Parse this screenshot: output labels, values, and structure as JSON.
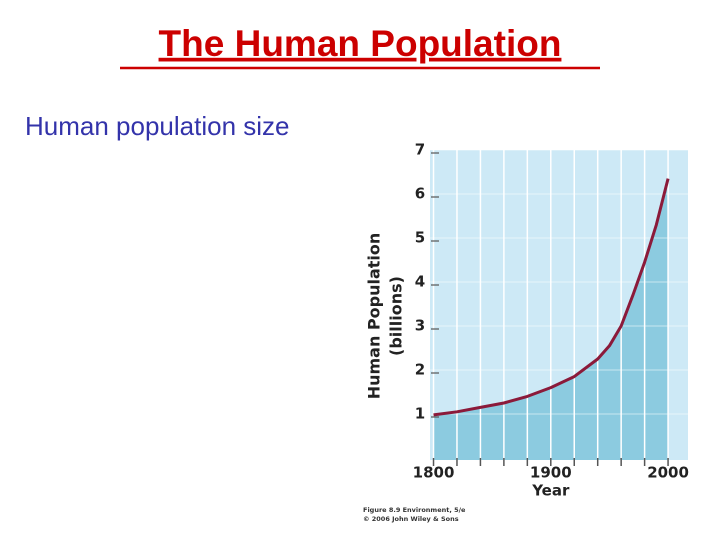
{
  "slide": {
    "title": "The Human Population",
    "subtitle": "Human population size"
  },
  "chart_data": {
    "type": "area",
    "ylabel": [
      "Human Population",
      "(billions)"
    ],
    "xlabel": "Year",
    "x": [
      1800,
      1820,
      1840,
      1860,
      1880,
      1900,
      1920,
      1940,
      1950,
      1960,
      1970,
      1980,
      1990,
      2000
    ],
    "values": [
      0.98,
      1.05,
      1.15,
      1.25,
      1.4,
      1.6,
      1.85,
      2.25,
      2.55,
      3.0,
      3.7,
      4.45,
      5.3,
      6.35
    ],
    "color": "#8b1a3a",
    "area_color": "#8ccbe0",
    "plot_background": "#cde9f6",
    "xlim": [
      1797,
      2017
    ],
    "ylim": [
      0,
      7
    ],
    "xticks": [
      1800,
      1900,
      2000
    ],
    "xminorticks": [
      1820,
      1840,
      1860,
      1880,
      1920,
      1940,
      1960,
      1980
    ],
    "yticks": [
      1,
      2,
      3,
      4,
      5,
      6,
      7
    ],
    "grid": true,
    "caption": [
      "Figure 8.9 Environment, 5/e",
      "© 2006 John Wiley & Sons"
    ]
  }
}
